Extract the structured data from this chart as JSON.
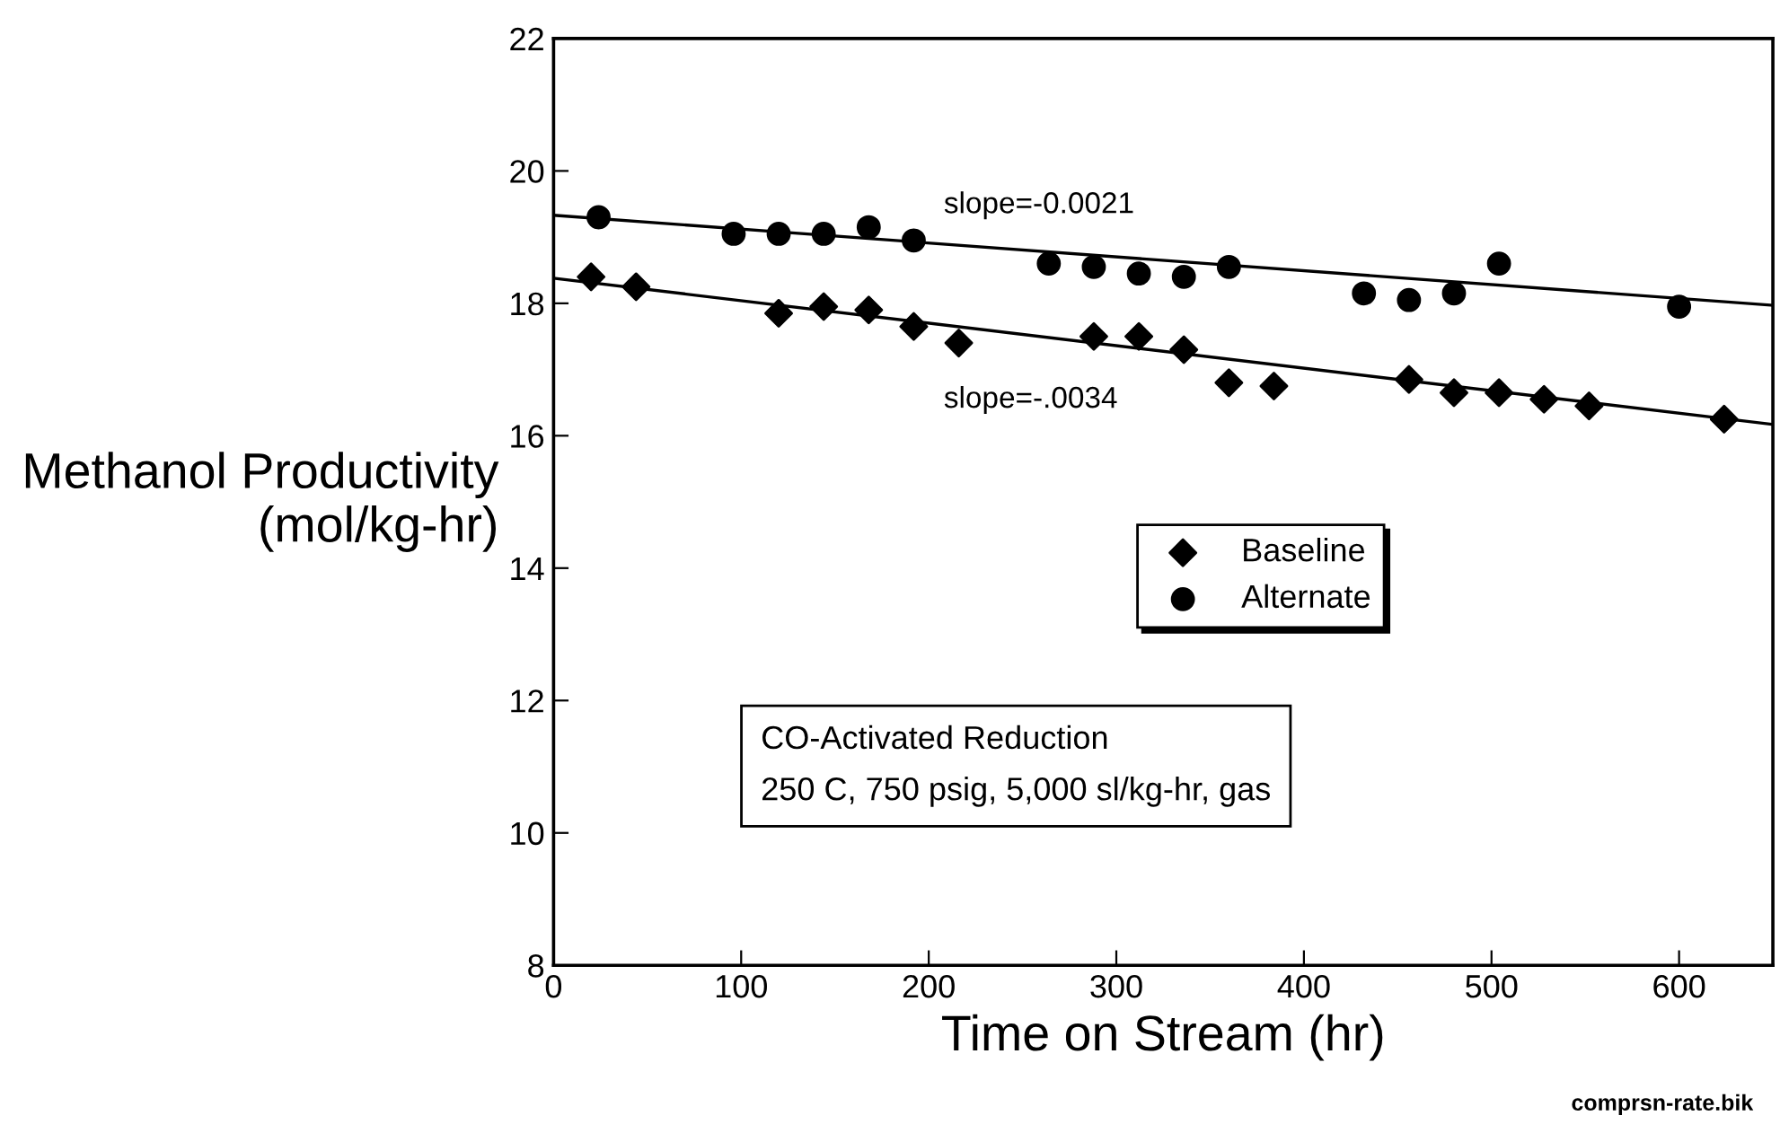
{
  "chart_data": {
    "type": "scatter",
    "xlabel": "Time on Stream (hr)",
    "ylabel": "Methanol Productivity\n(mol/kg-hr)",
    "xlim": [
      0,
      650
    ],
    "ylim": [
      8,
      22
    ],
    "xticks": [
      0,
      100,
      200,
      300,
      400,
      500,
      600
    ],
    "yticks": [
      8,
      10,
      12,
      14,
      16,
      18,
      20,
      22
    ],
    "grid": false,
    "legend": "center",
    "series": [
      {
        "name": "Baseline",
        "color": "#000000",
        "marker": "diamond",
        "x": [
          20,
          44,
          120,
          144,
          168,
          192,
          216,
          288,
          312,
          336,
          360,
          384,
          456,
          480,
          504,
          528,
          552,
          624
        ],
        "values": [
          18.4,
          18.25,
          17.85,
          17.95,
          17.9,
          17.65,
          17.4,
          17.5,
          17.5,
          17.3,
          16.8,
          16.75,
          16.85,
          16.65,
          16.65,
          16.55,
          16.45,
          16.25
        ]
      },
      {
        "name": "Alternate",
        "color": "#000000",
        "marker": "circle",
        "x": [
          24,
          96,
          120,
          144,
          168,
          192,
          264,
          288,
          312,
          336,
          360,
          432,
          456,
          480,
          504,
          600
        ],
        "values": [
          19.3,
          19.05,
          19.05,
          19.05,
          19.15,
          18.95,
          18.6,
          18.55,
          18.45,
          18.4,
          18.55,
          18.15,
          18.05,
          18.15,
          18.6,
          17.95
        ]
      },
      {
        "type": "line",
        "color": "#000000",
        "marker": "none",
        "x": [
          0,
          650
        ],
        "values": [
          19.33,
          17.97
        ]
      },
      {
        "type": "line",
        "color": "#000000",
        "marker": "none",
        "x": [
          0,
          650
        ],
        "values": [
          18.38,
          16.17
        ]
      }
    ],
    "annotations": [
      "slope=-0.0021",
      "slope=-.0034",
      "CO-Activated Reduction\n250 C, 750 psig, 5,000 sl/kg-hr, gas",
      "comprsn-rate.bik"
    ]
  }
}
